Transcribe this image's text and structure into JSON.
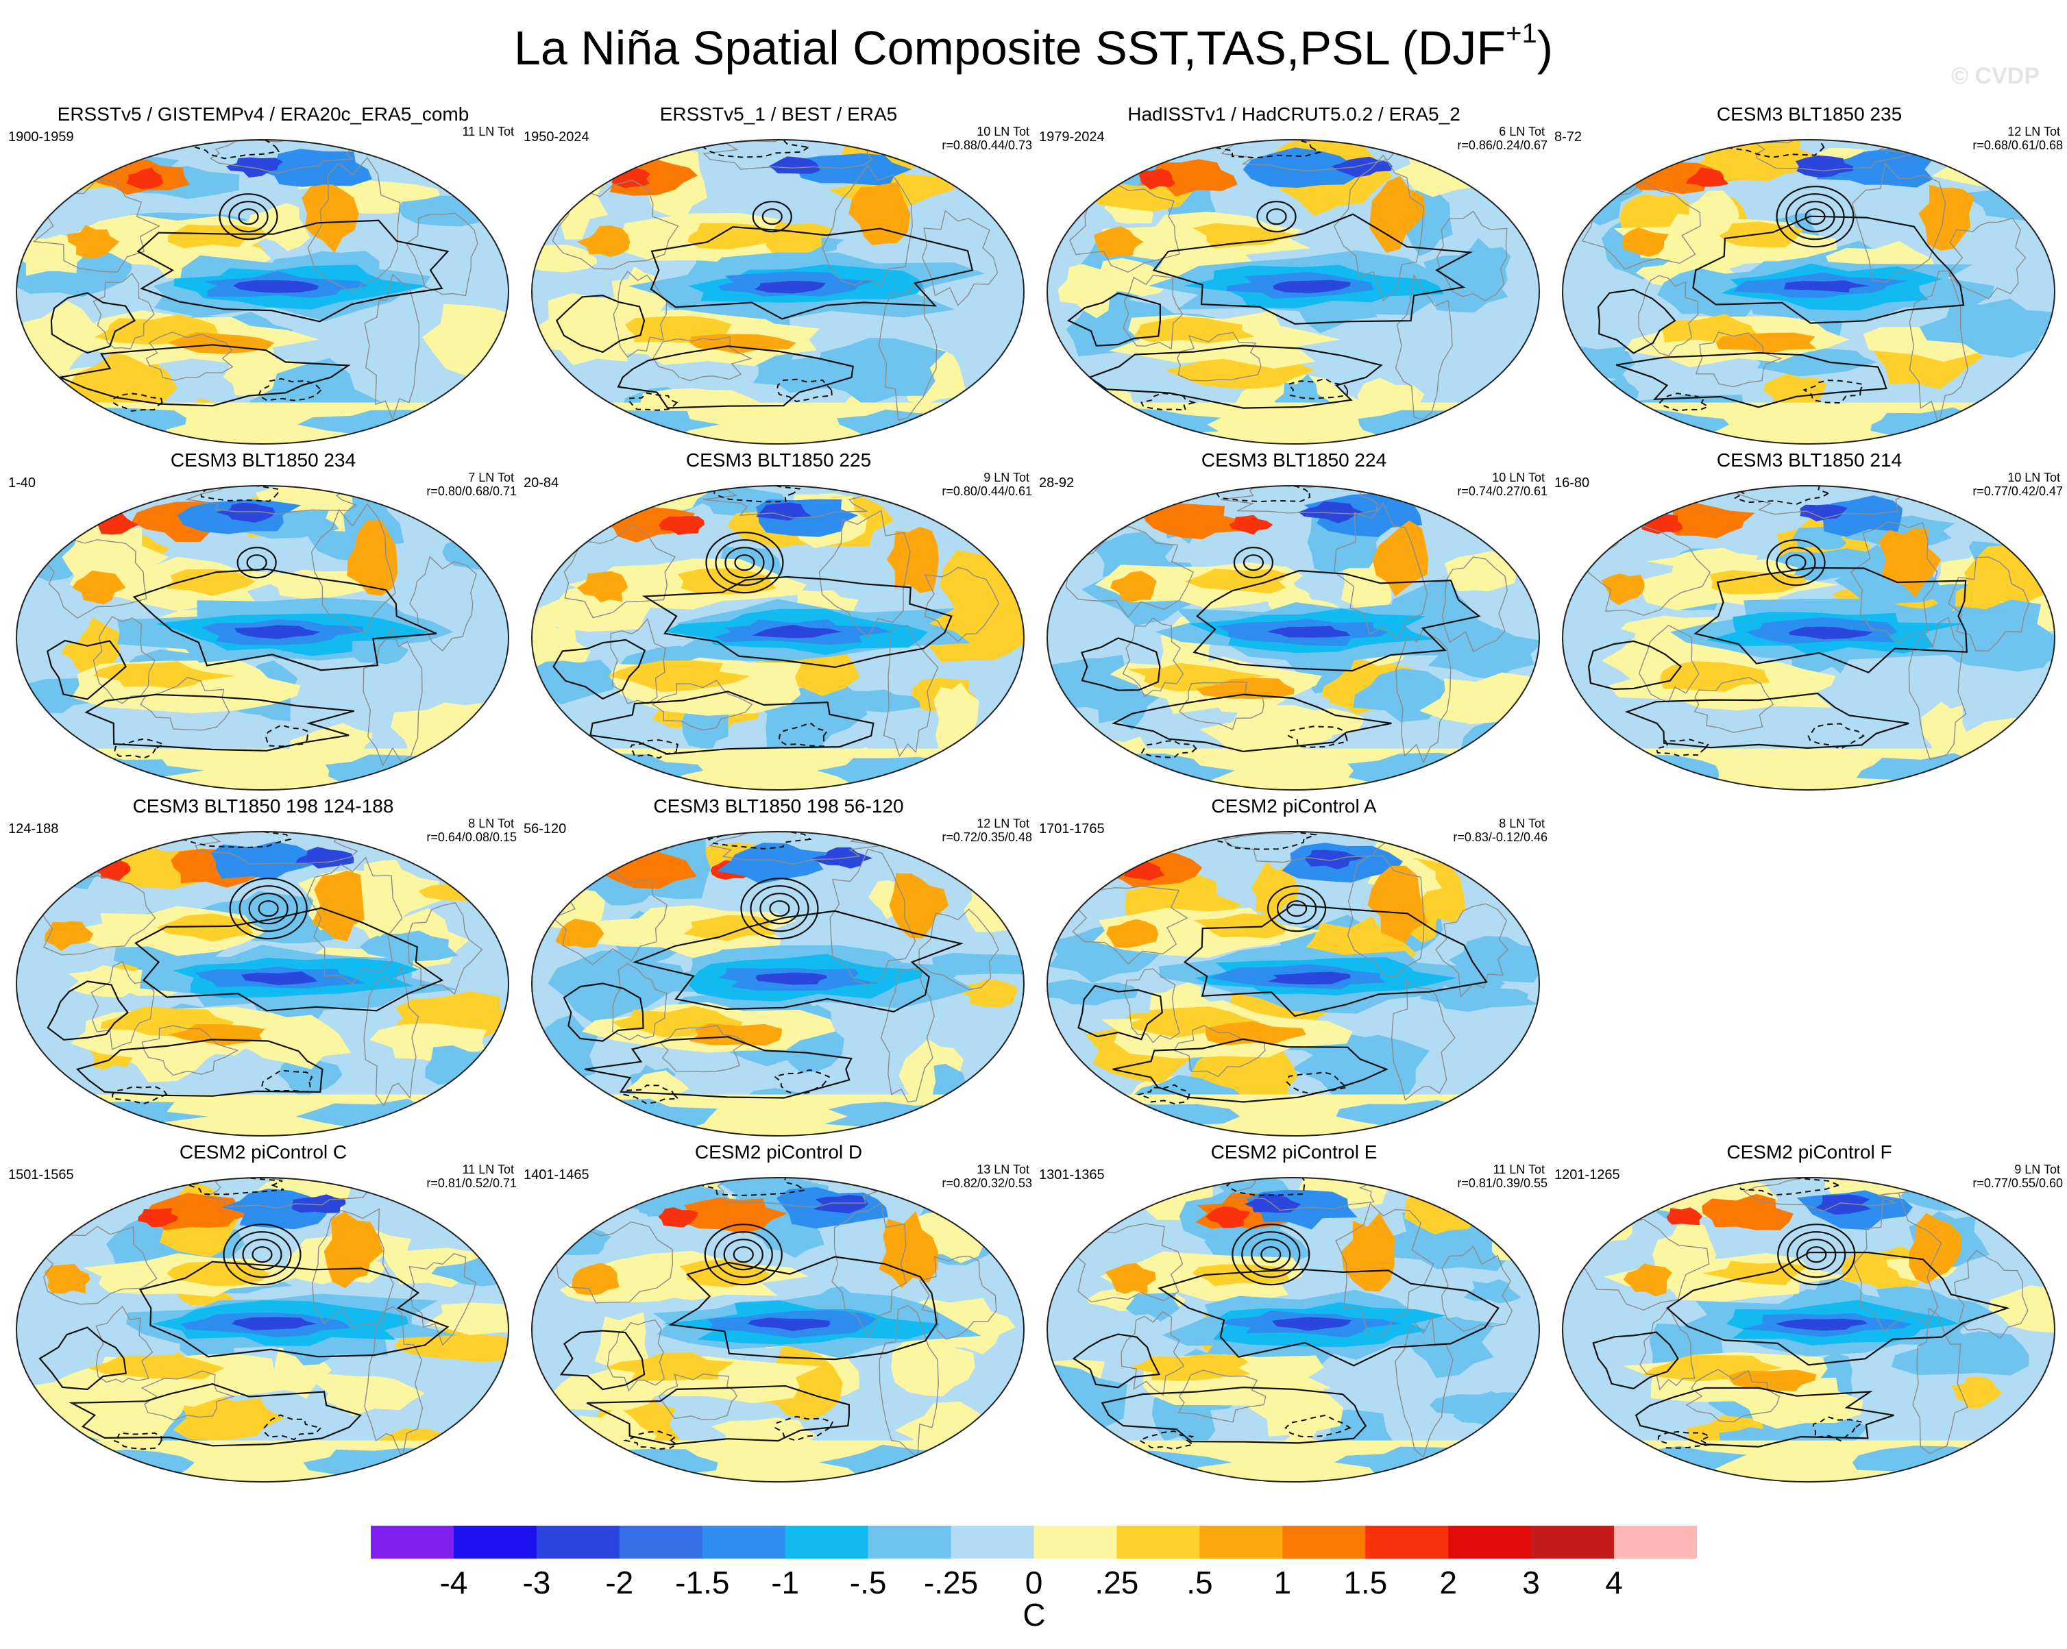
{
  "header": {
    "title_main": "La Niña Spatial Composite SST,TAS,PSL (DJF",
    "title_sup": "+1",
    "title_end": ")",
    "watermark": "© CVDP"
  },
  "panels": [
    {
      "title": "ERSSTv5 / GISTEMPv4 / ERA20c_ERA5_comb",
      "years": "1900-1959",
      "count": "11 LN Tot",
      "corr": "",
      "map": "obs-1900",
      "row": 0,
      "col": 0
    },
    {
      "title": "ERSSTv5_1 / BEST / ERA5",
      "years": "1950-2024",
      "count": "10 LN Tot",
      "corr": "r=0.88/0.44/0.73",
      "map": "obs-1950",
      "row": 0,
      "col": 1
    },
    {
      "title": "HadISSTv1 / HadCRUT5.0.2 / ERA5_2",
      "years": "1979-2024",
      "count": "6 LN Tot",
      "corr": "r=0.86/0.24/0.67",
      "map": "obs-1979",
      "row": 0,
      "col": 2
    },
    {
      "title": "CESM3 BLT1850 235",
      "years": "8-72",
      "count": "12 LN Tot",
      "corr": "r=0.68/0.61/0.68",
      "map": "blt235",
      "row": 0,
      "col": 3
    },
    {
      "title": "CESM3 BLT1850 234",
      "years": "1-40",
      "count": "7 LN Tot",
      "corr": "r=0.80/0.68/0.71",
      "map": "blt234",
      "row": 1,
      "col": 0
    },
    {
      "title": "CESM3 BLT1850 225",
      "years": "20-84",
      "count": "9 LN Tot",
      "corr": "r=0.80/0.44/0.61",
      "map": "blt225",
      "row": 1,
      "col": 1
    },
    {
      "title": "CESM3 BLT1850 224",
      "years": "28-92",
      "count": "10 LN Tot",
      "corr": "r=0.74/0.27/0.61",
      "map": "blt224",
      "row": 1,
      "col": 2
    },
    {
      "title": "CESM3 BLT1850 214",
      "years": "16-80",
      "count": "10 LN Tot",
      "corr": "r=0.77/0.42/0.47",
      "map": "blt214",
      "row": 1,
      "col": 3
    },
    {
      "title": "CESM3 BLT1850 198 124-188",
      "years": "124-188",
      "count": "8 LN Tot",
      "corr": "r=0.64/0.08/0.15",
      "map": "blt198b",
      "row": 2,
      "col": 0
    },
    {
      "title": "CESM3 BLT1850 198 56-120",
      "years": "56-120",
      "count": "12 LN Tot",
      "corr": "r=0.72/0.35/0.48",
      "map": "blt198a",
      "row": 2,
      "col": 1
    },
    {
      "title": "CESM2 piControl A",
      "years": "1701-1765",
      "count": "8 LN Tot",
      "corr": "r=0.83/-0.12/0.46",
      "map": "picA",
      "row": 2,
      "col": 2
    },
    {
      "title": "CESM2 piControl C",
      "years": "1501-1565",
      "count": "11 LN Tot",
      "corr": "r=0.81/0.52/0.71",
      "map": "picC",
      "row": 3,
      "col": 0
    },
    {
      "title": "CESM2 piControl D",
      "years": "1401-1465",
      "count": "13 LN Tot",
      "corr": "r=0.82/0.32/0.53",
      "map": "picD",
      "row": 3,
      "col": 1
    },
    {
      "title": "CESM2 piControl E",
      "years": "1301-1365",
      "count": "11 LN Tot",
      "corr": "r=0.81/0.39/0.55",
      "map": "picE",
      "row": 3,
      "col": 2
    },
    {
      "title": "CESM2 piControl F",
      "years": "1201-1265",
      "count": "9 LN Tot",
      "corr": "r=0.77/0.55/0.60",
      "map": "picF",
      "row": 3,
      "col": 3
    }
  ],
  "chart_data": {
    "type": "heatmap",
    "title": "La Niña Spatial Composite SST,TAS,PSL (DJF+1)",
    "colorbar": {
      "labels": [
        "-4",
        "-3",
        "-2",
        "-1.5",
        "-1",
        "-.5",
        "-.25",
        "0",
        ".25",
        ".5",
        "1",
        "1.5",
        "2",
        "3",
        "4"
      ],
      "colors": [
        "#7f1ff0",
        "#1d10f0",
        "#2b46dc",
        "#3670e6",
        "#2e8ef0",
        "#12baf2",
        "#6ec4ee",
        "#b2dcf3",
        "#fdf6a0",
        "#fdd02c",
        "#fda70d",
        "#fc7a04",
        "#f9310c",
        "#e30a0a",
        "#c61b1b",
        "#fcb6b6"
      ],
      "units": "C"
    },
    "palette": {
      "ocean_base": "#b2dcf3",
      "cold_strong": "#2b46dc",
      "cold": "#2e8ef0",
      "cold_mid": "#12baf2",
      "cold_light": "#6ec4ee",
      "warm_light": "#fdf6a0",
      "warm": "#fdd02c",
      "warm_mid": "#fda70d",
      "hot": "#fc7a04",
      "hotter": "#f9310c"
    },
    "panel_count": 15
  }
}
